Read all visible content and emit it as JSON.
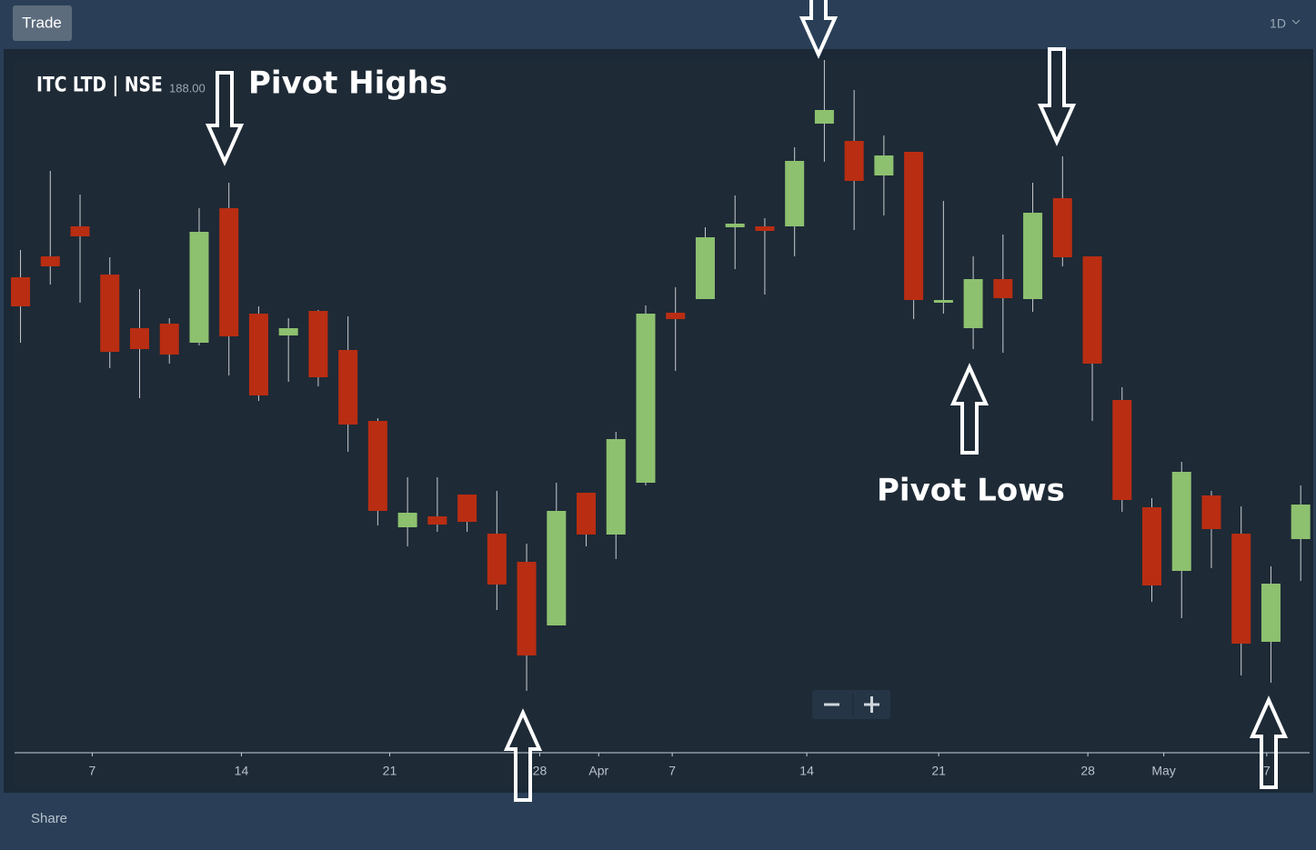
{
  "toolbar": {
    "button": "Trade",
    "interval": "1D"
  },
  "footer": "Share",
  "chart_data": {
    "type": "candlestick",
    "title": "ITC LTD | NSE",
    "last_price": "188.00",
    "annotations": [
      "Pivot Highs",
      "Pivot Lows"
    ],
    "up_color": "#8dc06f",
    "down_color": "#b92d12",
    "x": [
      0,
      1,
      2,
      3,
      4,
      5,
      6,
      7,
      8,
      9,
      10,
      11,
      12,
      13,
      14,
      15,
      16,
      17,
      18,
      19,
      20,
      21,
      22,
      23,
      24,
      25,
      26,
      27,
      28,
      29,
      30,
      31,
      32,
      33,
      34,
      35,
      36,
      37,
      38,
      39,
      40,
      41,
      42,
      43
    ],
    "open": [
      200.5,
      201.65,
      203.3,
      200.65,
      197.7,
      197.95,
      196.9,
      204.3,
      198.5,
      197.3,
      198.65,
      196.5,
      192.6,
      186.75,
      187.35,
      188.55,
      186.4,
      184.85,
      181.35,
      188.65,
      186.35,
      189.2,
      198.55,
      199.3,
      203.25,
      203.3,
      203.3,
      208.95,
      208.0,
      206.1,
      207.4,
      199.1,
      197.7,
      200.4,
      199.3,
      204.85,
      201.65,
      193.75,
      187.85,
      184.35,
      188.5,
      186.4,
      180.45,
      186.1
    ],
    "high": [
      202.0,
      206.35,
      205.05,
      201.6,
      199.85,
      198.25,
      204.3,
      205.7,
      198.9,
      198.25,
      198.7,
      198.35,
      192.75,
      189.5,
      189.5,
      188.55,
      188.75,
      185.85,
      189.2,
      188.65,
      192.0,
      198.95,
      199.95,
      203.25,
      205.0,
      203.75,
      207.65,
      212.45,
      210.8,
      208.3,
      207.4,
      204.7,
      201.65,
      202.85,
      205.7,
      207.15,
      201.65,
      194.45,
      188.35,
      190.35,
      188.75,
      187.9,
      184.6,
      189.05
    ],
    "low": [
      196.9,
      200.1,
      199.1,
      195.5,
      193.85,
      195.75,
      196.75,
      195.1,
      193.7,
      194.75,
      194.5,
      190.9,
      186.85,
      185.7,
      186.5,
      186.5,
      182.2,
      177.75,
      181.35,
      185.7,
      185.0,
      189.05,
      195.35,
      199.3,
      200.95,
      199.55,
      201.65,
      206.85,
      203.1,
      203.9,
      198.2,
      198.5,
      196.55,
      196.35,
      198.6,
      201.1,
      192.6,
      187.6,
      182.65,
      181.75,
      184.5,
      178.6,
      178.2,
      183.8
    ],
    "close": [
      198.9,
      201.1,
      202.75,
      196.4,
      196.55,
      196.25,
      203.0,
      197.25,
      194.0,
      197.7,
      195.0,
      192.4,
      187.65,
      187.55,
      186.9,
      187.05,
      183.6,
      179.7,
      187.65,
      186.35,
      191.6,
      198.5,
      198.2,
      202.7,
      203.45,
      203.05,
      206.9,
      209.7,
      205.8,
      207.2,
      199.25,
      199.25,
      200.4,
      199.35,
      204.05,
      201.6,
      195.75,
      188.25,
      183.55,
      189.8,
      186.65,
      180.35,
      183.65,
      188.0
    ],
    "xlim": [
      -0.2,
      43.3
    ],
    "ylim": [
      174.35,
      212.45
    ],
    "xticks": [
      {
        "value": 2.41,
        "label": "7"
      },
      {
        "value": 7.42,
        "label": "14"
      },
      {
        "value": 12.4,
        "label": "21"
      },
      {
        "value": 17.44,
        "label": "28"
      },
      {
        "value": 19.42,
        "label": "Apr"
      },
      {
        "value": 21.89,
        "label": "7"
      },
      {
        "value": 26.41,
        "label": "14"
      },
      {
        "value": 30.84,
        "label": "21"
      },
      {
        "value": 35.85,
        "label": "28"
      },
      {
        "value": 38.4,
        "label": "May"
      },
      {
        "value": 41.86,
        "label": "7"
      }
    ]
  }
}
